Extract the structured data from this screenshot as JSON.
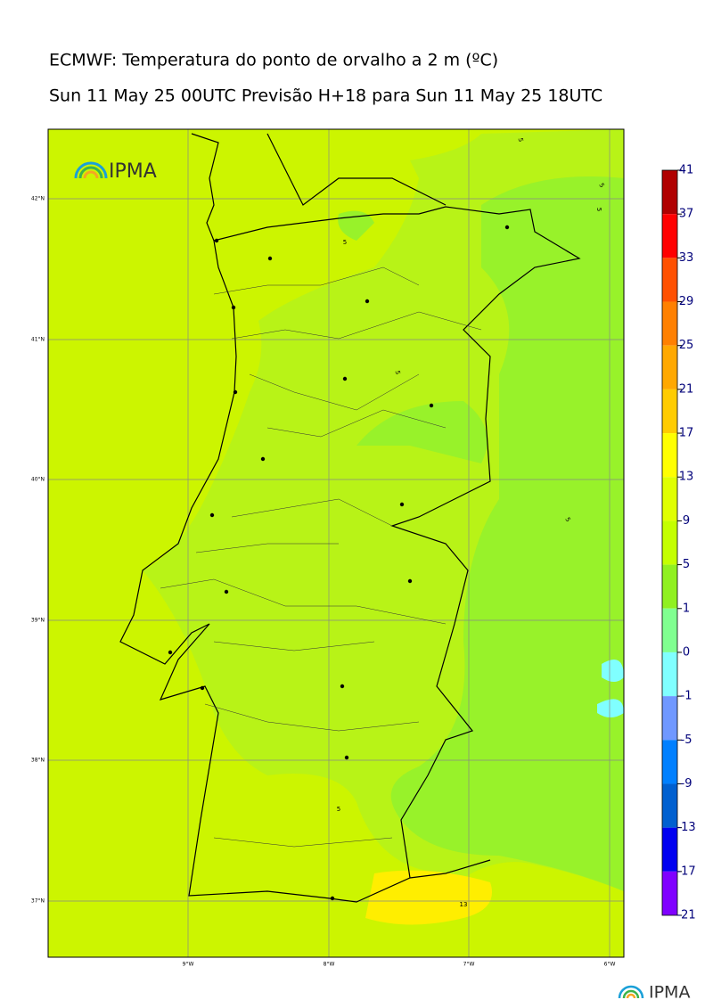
{
  "header": {
    "title": "ECMWF: Temperatura do ponto de orvalho a 2 m (ºC)",
    "subtitle": "Sun 11 May 25 00UTC Previsão H+18 para Sun 11 May 25 18UTC"
  },
  "map": {
    "logo": "IPMA",
    "lat_labels": [
      "42°N",
      "41°N",
      "40°N",
      "39°N",
      "38°N",
      "37°N"
    ],
    "lon_labels": [
      "9°W",
      "8°W",
      "7°W",
      "6°W"
    ],
    "contour_labels": [
      "5",
      "5",
      "5",
      "5",
      "5",
      "5",
      "5",
      "13"
    ]
  },
  "colorbar": {
    "labels": [
      "41",
      "37",
      "33",
      "29",
      "25",
      "21",
      "17",
      "13",
      "9",
      "5",
      "1",
      "0",
      "-1",
      "-5",
      "-9",
      "-13",
      "-17",
      "-21"
    ],
    "colors": [
      "#b00000",
      "#ff0000",
      "#ff5000",
      "#ff8000",
      "#ffa800",
      "#ffcc00",
      "#ffff00",
      "#e0ff00",
      "#c4ff00",
      "#90f020",
      "#80ff90",
      "#80ffff",
      "#7098ff",
      "#0080ff",
      "#0060d0",
      "#0000f0",
      "#8000ff"
    ]
  },
  "footer": {
    "logo": "IPMA"
  }
}
